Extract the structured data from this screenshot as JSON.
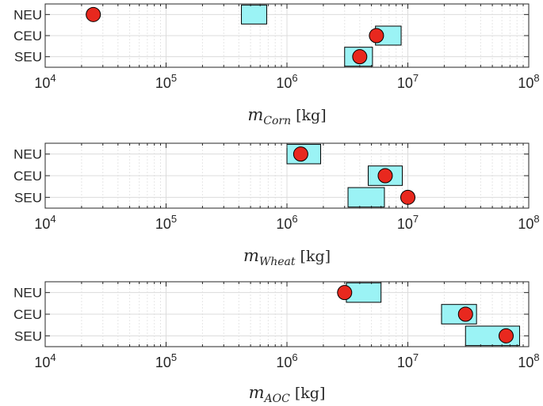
{
  "chart_data": [
    {
      "type": "range-dot",
      "xlabel": {
        "symbol": "m",
        "subscript": "Corn",
        "unit": "[kg]"
      },
      "xscale": "log",
      "xlim": [
        10000,
        100000000
      ],
      "xticks": [
        {
          "base": "10",
          "exp": "4"
        },
        {
          "base": "10",
          "exp": "5"
        },
        {
          "base": "10",
          "exp": "6"
        },
        {
          "base": "10",
          "exp": "7"
        },
        {
          "base": "10",
          "exp": "8"
        }
      ],
      "grid": true,
      "categories": [
        "NEU",
        "CEU",
        "SEU"
      ],
      "ranges": [
        [
          420000,
          680000
        ],
        [
          5400000,
          8800000
        ],
        [
          3000000,
          5100000
        ]
      ],
      "points": [
        25000,
        5500000,
        4000000
      ]
    },
    {
      "type": "range-dot",
      "xlabel": {
        "symbol": "m",
        "subscript": "Wheat",
        "unit": "[kg]"
      },
      "xscale": "log",
      "xlim": [
        10000,
        100000000
      ],
      "xticks": [
        {
          "base": "10",
          "exp": "4"
        },
        {
          "base": "10",
          "exp": "5"
        },
        {
          "base": "10",
          "exp": "6"
        },
        {
          "base": "10",
          "exp": "7"
        },
        {
          "base": "10",
          "exp": "8"
        }
      ],
      "grid": true,
      "categories": [
        "NEU",
        "CEU",
        "SEU"
      ],
      "ranges": [
        [
          1000000,
          1900000
        ],
        [
          4700000,
          9000000
        ],
        [
          3200000,
          6400000
        ]
      ],
      "points": [
        1300000,
        6500000,
        10000000
      ]
    },
    {
      "type": "range-dot",
      "xlabel": {
        "symbol": "m",
        "subscript": "AOC",
        "unit": "[kg]"
      },
      "xscale": "log",
      "xlim": [
        10000,
        100000000
      ],
      "xticks": [
        {
          "base": "10",
          "exp": "4"
        },
        {
          "base": "10",
          "exp": "5"
        },
        {
          "base": "10",
          "exp": "6"
        },
        {
          "base": "10",
          "exp": "7"
        },
        {
          "base": "10",
          "exp": "8"
        }
      ],
      "grid": true,
      "categories": [
        "NEU",
        "CEU",
        "SEU"
      ],
      "ranges": [
        [
          3100000,
          6000000
        ],
        [
          19000000,
          37000000
        ],
        [
          30000000,
          84000000
        ]
      ],
      "points": [
        3000000,
        30000000,
        65000000
      ]
    }
  ],
  "style": {
    "box_fill": "#9bf3f5",
    "box_stroke": "#000000",
    "dot_fill": "#e8281e",
    "dot_stroke": "#000000",
    "grid_color": "#e6e6e6",
    "axis_color": "#262626"
  }
}
